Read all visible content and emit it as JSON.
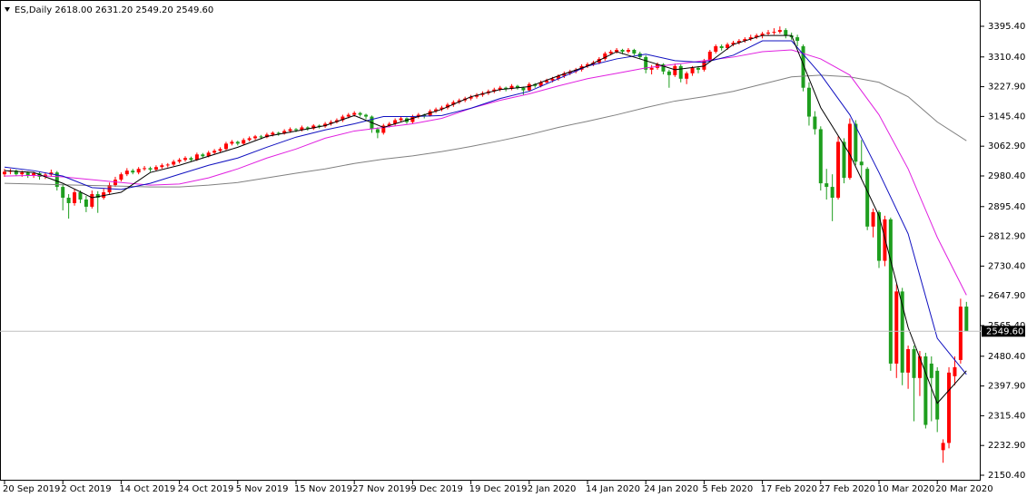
{
  "chart_data": {
    "type": "candlestick",
    "title": "ES,Daily 2618.00 2631.20 2549.20 2549.60",
    "categories": [
      "20 Sep 2019",
      null,
      null,
      null,
      null,
      null,
      null,
      null,
      null,
      null,
      "2 Oct 2019",
      null,
      null,
      null,
      null,
      null,
      null,
      null,
      null,
      null,
      "14 Oct 2019",
      null,
      null,
      null,
      null,
      null,
      null,
      null,
      null,
      null,
      "24 Oct 2019",
      null,
      null,
      null,
      null,
      null,
      null,
      null,
      null,
      null,
      "5 Nov 2019",
      null,
      null,
      null,
      null,
      null,
      null,
      null,
      null,
      null,
      "15 Nov 2019",
      null,
      null,
      null,
      null,
      null,
      null,
      null,
      null,
      null,
      "27 Nov 2019",
      null,
      null,
      null,
      null,
      null,
      null,
      null,
      null,
      null,
      "9 Dec 2019",
      null,
      null,
      null,
      null,
      null,
      null,
      null,
      null,
      null,
      "19 Dec 2019",
      null,
      null,
      null,
      null,
      null,
      null,
      null,
      null,
      null,
      "2 Jan 2020",
      null,
      null,
      null,
      null,
      null,
      null,
      null,
      null,
      null,
      "14 Jan 2020",
      null,
      null,
      null,
      null,
      null,
      null,
      null,
      null,
      null,
      "24 Jan 2020",
      null,
      null,
      null,
      null,
      null,
      null,
      null,
      null,
      null,
      "5 Feb 2020",
      null,
      null,
      null,
      null,
      null,
      null,
      null,
      null,
      null,
      "17 Feb 2020",
      null,
      null,
      null,
      null,
      null,
      null,
      null,
      null,
      null,
      "27 Feb 2020",
      null,
      null,
      null,
      null,
      null,
      null,
      null,
      null,
      null,
      "10 Mar 2020",
      null,
      null,
      null,
      null,
      null,
      null,
      null,
      null,
      null,
      "20 Mar 2020",
      null,
      null,
      null,
      null,
      null
    ],
    "ohlc": [
      [
        2985,
        3000,
        2978,
        2992
      ],
      [
        2992,
        3000,
        2985,
        2995
      ],
      [
        2995,
        2998,
        2980,
        2985
      ],
      [
        2985,
        2995,
        2978,
        2990
      ],
      [
        2990,
        2993,
        2975,
        2982
      ],
      [
        2982,
        2992,
        2975,
        2988
      ],
      [
        2988,
        2992,
        2970,
        2978
      ],
      [
        2978,
        2990,
        2972,
        2984
      ],
      [
        2984,
        2998,
        2978,
        2990
      ],
      [
        2990,
        2994,
        2940,
        2950
      ],
      [
        2950,
        2958,
        2885,
        2920
      ],
      [
        2920,
        2930,
        2862,
        2905
      ],
      [
        2905,
        2945,
        2898,
        2935
      ],
      [
        2935,
        2940,
        2905,
        2915
      ],
      [
        2915,
        2925,
        2880,
        2895
      ],
      [
        2895,
        2940,
        2890,
        2930
      ],
      [
        2930,
        2938,
        2878,
        2920
      ],
      [
        2920,
        2945,
        2915,
        2935
      ],
      [
        2935,
        2962,
        2930,
        2955
      ],
      [
        2955,
        2978,
        2950,
        2970
      ],
      [
        2970,
        2990,
        2965,
        2985
      ],
      [
        2985,
        3002,
        2980,
        2995
      ],
      [
        2995,
        3000,
        2985,
        2990
      ],
      [
        2990,
        3005,
        2985,
        3000
      ],
      [
        3000,
        3008,
        2995,
        3002
      ],
      [
        3002,
        3006,
        2992,
        2998
      ],
      [
        2998,
        3010,
        2994,
        3005
      ],
      [
        3005,
        3015,
        3000,
        3010
      ],
      [
        3010,
        3016,
        3004,
        3012
      ],
      [
        3012,
        3025,
        3008,
        3020
      ],
      [
        3020,
        3030,
        3015,
        3025
      ],
      [
        3025,
        3035,
        3020,
        3030
      ],
      [
        3030,
        3034,
        3020,
        3025
      ],
      [
        3025,
        3045,
        3022,
        3040
      ],
      [
        3040,
        3044,
        3030,
        3035
      ],
      [
        3035,
        3050,
        3032,
        3045
      ],
      [
        3045,
        3055,
        3040,
        3050
      ],
      [
        3050,
        3060,
        3046,
        3055
      ],
      [
        3055,
        3075,
        3052,
        3070
      ],
      [
        3070,
        3080,
        3065,
        3075
      ],
      [
        3075,
        3078,
        3065,
        3070
      ],
      [
        3070,
        3085,
        3066,
        3080
      ],
      [
        3080,
        3090,
        3076,
        3085
      ],
      [
        3085,
        3094,
        3080,
        3090
      ],
      [
        3090,
        3094,
        3082,
        3088
      ],
      [
        3088,
        3100,
        3085,
        3095
      ],
      [
        3095,
        3104,
        3090,
        3100
      ],
      [
        3100,
        3103,
        3092,
        3098
      ],
      [
        3098,
        3110,
        3095,
        3105
      ],
      [
        3105,
        3115,
        3100,
        3110
      ],
      [
        3110,
        3113,
        3102,
        3108
      ],
      [
        3108,
        3120,
        3104,
        3115
      ],
      [
        3115,
        3118,
        3106,
        3112
      ],
      [
        3112,
        3124,
        3108,
        3120
      ],
      [
        3120,
        3123,
        3112,
        3118
      ],
      [
        3118,
        3130,
        3114,
        3125
      ],
      [
        3125,
        3135,
        3120,
        3130
      ],
      [
        3130,
        3140,
        3126,
        3135
      ],
      [
        3135,
        3150,
        3130,
        3145
      ],
      [
        3145,
        3155,
        3140,
        3150
      ],
      [
        3150,
        3160,
        3145,
        3155
      ],
      [
        3155,
        3158,
        3145,
        3150
      ],
      [
        3150,
        3153,
        3138,
        3145
      ],
      [
        3145,
        3148,
        3100,
        3110
      ],
      [
        3110,
        3115,
        3085,
        3100
      ],
      [
        3100,
        3125,
        3095,
        3120
      ],
      [
        3120,
        3130,
        3115,
        3125
      ],
      [
        3125,
        3140,
        3120,
        3135
      ],
      [
        3135,
        3145,
        3130,
        3140
      ],
      [
        3140,
        3143,
        3125,
        3130
      ],
      [
        3130,
        3150,
        3126,
        3145
      ],
      [
        3145,
        3155,
        3140,
        3150
      ],
      [
        3150,
        3153,
        3140,
        3148
      ],
      [
        3148,
        3165,
        3145,
        3160
      ],
      [
        3160,
        3170,
        3155,
        3165
      ],
      [
        3165,
        3175,
        3160,
        3170
      ],
      [
        3170,
        3183,
        3165,
        3178
      ],
      [
        3178,
        3190,
        3172,
        3185
      ],
      [
        3185,
        3195,
        3180,
        3190
      ],
      [
        3190,
        3200,
        3185,
        3195
      ],
      [
        3195,
        3205,
        3190,
        3200
      ],
      [
        3200,
        3210,
        3195,
        3205
      ],
      [
        3205,
        3215,
        3200,
        3210
      ],
      [
        3210,
        3220,
        3205,
        3215
      ],
      [
        3215,
        3225,
        3210,
        3220
      ],
      [
        3220,
        3230,
        3215,
        3225
      ],
      [
        3225,
        3228,
        3215,
        3222
      ],
      [
        3222,
        3235,
        3218,
        3230
      ],
      [
        3230,
        3233,
        3220,
        3225
      ],
      [
        3225,
        3228,
        3205,
        3218
      ],
      [
        3218,
        3240,
        3214,
        3235
      ],
      [
        3235,
        3238,
        3225,
        3230
      ],
      [
        3230,
        3245,
        3226,
        3240
      ],
      [
        3240,
        3250,
        3236,
        3245
      ],
      [
        3245,
        3255,
        3240,
        3250
      ],
      [
        3250,
        3262,
        3245,
        3258
      ],
      [
        3258,
        3270,
        3252,
        3265
      ],
      [
        3265,
        3275,
        3260,
        3270
      ],
      [
        3270,
        3280,
        3265,
        3275
      ],
      [
        3275,
        3290,
        3270,
        3285
      ],
      [
        3285,
        3295,
        3280,
        3290
      ],
      [
        3290,
        3300,
        3285,
        3295
      ],
      [
        3295,
        3310,
        3290,
        3305
      ],
      [
        3305,
        3325,
        3300,
        3320
      ],
      [
        3320,
        3330,
        3315,
        3325
      ],
      [
        3325,
        3335,
        3320,
        3330
      ],
      [
        3330,
        3333,
        3318,
        3325
      ],
      [
        3325,
        3335,
        3320,
        3330
      ],
      [
        3330,
        3333,
        3315,
        3320
      ],
      [
        3320,
        3325,
        3305,
        3310
      ],
      [
        3310,
        3315,
        3265,
        3275
      ],
      [
        3275,
        3288,
        3262,
        3280
      ],
      [
        3280,
        3295,
        3275,
        3290
      ],
      [
        3290,
        3293,
        3262,
        3270
      ],
      [
        3270,
        3275,
        3225,
        3260
      ],
      [
        3260,
        3292,
        3255,
        3285
      ],
      [
        3285,
        3290,
        3240,
        3250
      ],
      [
        3250,
        3270,
        3235,
        3265
      ],
      [
        3265,
        3285,
        3258,
        3280
      ],
      [
        3280,
        3285,
        3265,
        3275
      ],
      [
        3275,
        3305,
        3270,
        3300
      ],
      [
        3300,
        3330,
        3295,
        3325
      ],
      [
        3325,
        3345,
        3320,
        3340
      ],
      [
        3340,
        3345,
        3328,
        3335
      ],
      [
        3335,
        3350,
        3330,
        3345
      ],
      [
        3345,
        3355,
        3340,
        3350
      ],
      [
        3350,
        3360,
        3345,
        3355
      ],
      [
        3355,
        3365,
        3350,
        3360
      ],
      [
        3360,
        3372,
        3355,
        3365
      ],
      [
        3365,
        3375,
        3360,
        3370
      ],
      [
        3370,
        3380,
        3362,
        3375
      ],
      [
        3375,
        3385,
        3370,
        3378
      ],
      [
        3378,
        3390,
        3372,
        3380
      ],
      [
        3380,
        3395,
        3375,
        3385
      ],
      [
        3385,
        3390,
        3362,
        3370
      ],
      [
        3370,
        3378,
        3358,
        3365
      ],
      [
        3365,
        3372,
        3340,
        3355
      ],
      [
        3340,
        3345,
        3215,
        3225
      ],
      [
        3225,
        3240,
        3120,
        3145
      ],
      [
        3145,
        3160,
        3095,
        3110
      ],
      [
        3110,
        3118,
        2940,
        2960
      ],
      [
        2960,
        3000,
        2915,
        2950
      ],
      [
        2950,
        2985,
        2855,
        2920
      ],
      [
        2920,
        3090,
        2915,
        3075
      ],
      [
        3075,
        3085,
        2960,
        2975
      ],
      [
        2975,
        3140,
        2970,
        3125
      ],
      [
        3125,
        3135,
        3010,
        3020
      ],
      [
        3020,
        3080,
        2970,
        3010
      ],
      [
        3000,
        3005,
        2830,
        2840
      ],
      [
        2840,
        2890,
        2810,
        2880
      ],
      [
        2880,
        2885,
        2725,
        2745
      ],
      [
        2745,
        2870,
        2730,
        2860
      ],
      [
        2860,
        2865,
        2440,
        2460
      ],
      [
        2460,
        2680,
        2420,
        2660
      ],
      [
        2660,
        2670,
        2400,
        2435
      ],
      [
        2435,
        2510,
        2390,
        2500
      ],
      [
        2500,
        2510,
        2300,
        2420
      ],
      [
        2420,
        2495,
        2370,
        2480
      ],
      [
        2480,
        2490,
        2280,
        2290
      ],
      [
        2460,
        2480,
        2300,
        2420
      ],
      [
        2440,
        2450,
        2270,
        2305
      ],
      [
        2220,
        2250,
        2185,
        2240
      ],
      [
        2240,
        2450,
        2225,
        2435
      ],
      [
        2425,
        2480,
        2400,
        2450
      ],
      [
        2470,
        2640,
        2460,
        2618
      ],
      [
        2618,
        2631.2,
        2549.2,
        2549.6
      ]
    ],
    "up_color": "#ff0000",
    "down_color": "#1e9e1e",
    "ylim": [
      2135.3,
      3468.3
    ],
    "yticks": [
      {
        "value": 3395.4,
        "label": "3395.40"
      },
      {
        "value": 3310.4,
        "label": "3310.40"
      },
      {
        "value": 3227.9,
        "label": "3227.90"
      },
      {
        "value": 3145.4,
        "label": "3145.40"
      },
      {
        "value": 3062.9,
        "label": "3062.90"
      },
      {
        "value": 2980.4,
        "label": "2980.40"
      },
      {
        "value": 2895.4,
        "label": "2895.40"
      },
      {
        "value": 2812.9,
        "label": "2812.90"
      },
      {
        "value": 2730.4,
        "label": "2730.40"
      },
      {
        "value": 2647.9,
        "label": "2647.90"
      },
      {
        "value": 2565.4,
        "label": "2565.40"
      },
      {
        "value": 2480.4,
        "label": "2480.40"
      },
      {
        "value": 2397.9,
        "label": "2397.90"
      },
      {
        "value": 2315.4,
        "label": "2315.40"
      },
      {
        "value": 2232.9,
        "label": "2232.90"
      },
      {
        "value": 2150.4,
        "label": "2150.40"
      }
    ],
    "line_x": [
      0,
      5,
      10,
      15,
      20,
      25,
      30,
      35,
      40,
      45,
      50,
      55,
      60,
      65,
      70,
      75,
      80,
      85,
      90,
      95,
      100,
      105,
      110,
      115,
      120,
      125,
      130,
      135,
      140,
      145,
      150,
      155,
      160,
      165
    ],
    "lines": [
      {
        "color": "#808080",
        "values": [
          2960,
          2958,
          2956,
          2954,
          2952,
          2950,
          2950,
          2955,
          2962,
          2975,
          2988,
          3000,
          3015,
          3027,
          3036,
          3048,
          3062,
          3078,
          3095,
          3115,
          3132,
          3150,
          3170,
          3188,
          3200,
          3215,
          3235,
          3255,
          3260,
          3255,
          3240,
          3200,
          3130,
          3078
        ]
      },
      {
        "color": "#e020e0",
        "values": [
          2980,
          2982,
          2978,
          2970,
          2962,
          2955,
          2958,
          2975,
          3000,
          3030,
          3055,
          3085,
          3105,
          3115,
          3125,
          3140,
          3168,
          3190,
          3208,
          3230,
          3250,
          3265,
          3280,
          3290,
          3300,
          3310,
          3325,
          3330,
          3305,
          3260,
          3150,
          3000,
          2810,
          2650
        ]
      },
      {
        "color": "#1010c0",
        "values": [
          3005,
          2995,
          2980,
          2948,
          2943,
          2960,
          2985,
          3010,
          3030,
          3060,
          3088,
          3108,
          3125,
          3145,
          3145,
          3148,
          3168,
          3195,
          3215,
          3250,
          3285,
          3305,
          3318,
          3300,
          3295,
          3315,
          3355,
          3355,
          3262,
          3150,
          2990,
          2820,
          2530,
          2430
        ]
      },
      {
        "color": "#000000",
        "values": [
          2995,
          2990,
          2960,
          2920,
          2935,
          2990,
          3010,
          3035,
          3060,
          3090,
          3105,
          3120,
          3148,
          3115,
          3140,
          3165,
          3200,
          3220,
          3228,
          3258,
          3285,
          3325,
          3300,
          3275,
          3285,
          3345,
          3370,
          3370,
          3170,
          3040,
          2870,
          2560,
          2350,
          2440
        ]
      }
    ],
    "current_price": {
      "value": 2549.6,
      "label": "2549.60"
    }
  }
}
